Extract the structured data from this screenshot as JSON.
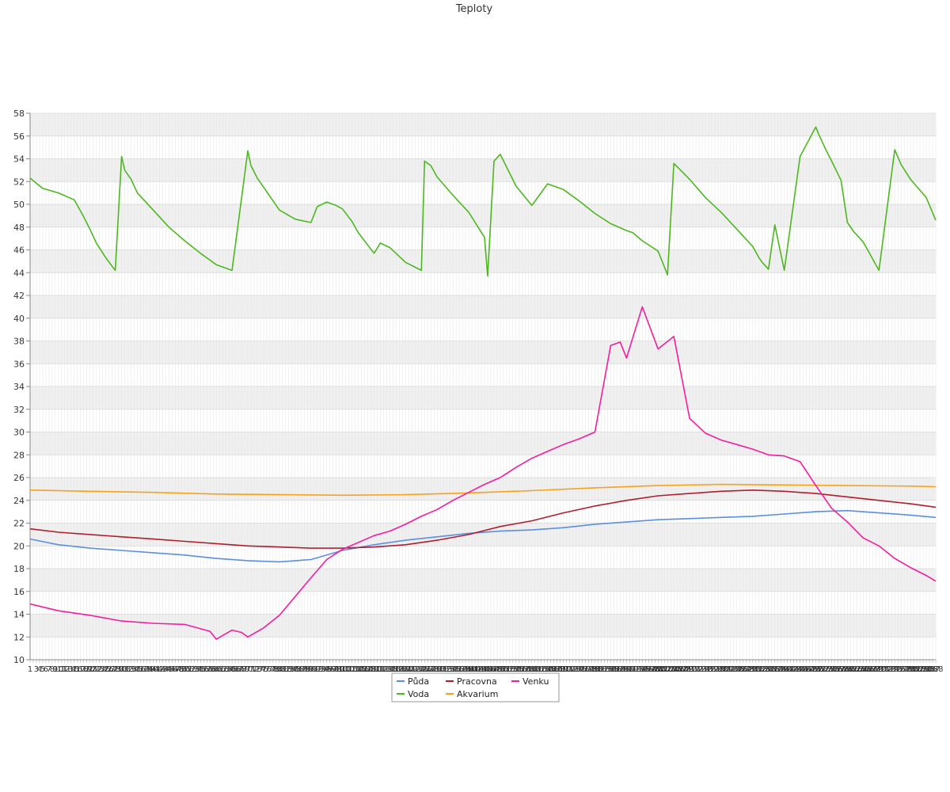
{
  "chart_data": {
    "type": "line",
    "title": "Teploty",
    "xlabel": "",
    "ylabel": "",
    "ylim": [
      10,
      58
    ],
    "yticks": [
      10,
      12,
      14,
      16,
      18,
      20,
      22,
      24,
      26,
      28,
      30,
      32,
      34,
      36,
      38,
      40,
      42,
      44,
      46,
      48,
      50,
      52,
      54,
      56,
      58
    ],
    "grid": true,
    "legend_position": "bottom-center",
    "x": [
      1,
      288
    ],
    "x_visible_labels": [
      "1",
      "3",
      "5",
      "6",
      "7",
      "8",
      "9",
      "10",
      "11",
      "13",
      "15",
      "16",
      "20",
      "22",
      "23",
      "24",
      "25",
      "27",
      "29",
      "30",
      "31",
      "33",
      "35"
    ],
    "x_label_overflow": true,
    "series": [
      {
        "name": "Půda",
        "color": "#5b8fe0",
        "x": [
          1,
          10,
          20,
          30,
          40,
          50,
          60,
          70,
          80,
          90,
          100,
          110,
          120,
          130,
          140,
          150,
          160,
          170,
          180,
          190,
          200,
          210,
          220,
          230,
          240,
          250,
          260,
          270,
          280,
          288
        ],
        "values": [
          20.6,
          20.1,
          19.8,
          19.6,
          19.4,
          19.2,
          18.9,
          18.7,
          18.6,
          18.8,
          19.6,
          20.1,
          20.5,
          20.8,
          21.1,
          21.3,
          21.4,
          21.6,
          21.9,
          22.1,
          22.3,
          22.4,
          22.5,
          22.6,
          22.8,
          23.0,
          23.1,
          22.9,
          22.7,
          22.5
        ]
      },
      {
        "name": "Pracovna",
        "color": "#b01e2e",
        "x": [
          1,
          10,
          20,
          30,
          40,
          50,
          60,
          70,
          80,
          90,
          100,
          110,
          120,
          130,
          140,
          150,
          160,
          170,
          180,
          190,
          200,
          210,
          220,
          230,
          240,
          250,
          260,
          270,
          280,
          288
        ],
        "values": [
          21.5,
          21.2,
          21.0,
          20.8,
          20.6,
          20.4,
          20.2,
          20.0,
          19.9,
          19.8,
          19.8,
          19.9,
          20.1,
          20.5,
          21.0,
          21.7,
          22.2,
          22.9,
          23.5,
          24.0,
          24.4,
          24.6,
          24.8,
          24.9,
          24.8,
          24.6,
          24.3,
          24.0,
          23.7,
          23.4
        ]
      },
      {
        "name": "Venku",
        "color": "#f21e9e",
        "x": [
          1,
          10,
          20,
          30,
          40,
          50,
          58,
          60,
          65,
          68,
          70,
          75,
          80,
          90,
          95,
          100,
          110,
          115,
          120,
          125,
          130,
          135,
          140,
          145,
          150,
          155,
          160,
          165,
          170,
          175,
          180,
          185,
          188,
          190,
          195,
          200,
          205,
          210,
          215,
          220,
          225,
          230,
          235,
          240,
          245,
          250,
          255,
          260,
          265,
          270,
          275,
          280,
          285,
          288
        ],
        "values": [
          14.9,
          14.3,
          13.9,
          13.4,
          13.2,
          13.1,
          12.5,
          11.8,
          12.6,
          12.4,
          12.0,
          12.8,
          13.9,
          17.2,
          18.8,
          19.7,
          20.9,
          21.3,
          21.9,
          22.6,
          23.2,
          24.0,
          24.7,
          25.4,
          26.0,
          26.9,
          27.7,
          28.3,
          28.9,
          29.4,
          30.0,
          37.6,
          37.9,
          36.5,
          41.0,
          37.3,
          38.4,
          31.2,
          29.9,
          29.3,
          28.9,
          28.5,
          28.0,
          27.9,
          27.4,
          25.3,
          23.3,
          22.1,
          20.7,
          20.0,
          18.9,
          18.1,
          17.4,
          16.9
        ]
      },
      {
        "name": "Voda",
        "color": "#4cb81e",
        "x": [
          1,
          5,
          10,
          15,
          18,
          20,
          22,
          25,
          28,
          30,
          31,
          33,
          35,
          40,
          45,
          50,
          55,
          60,
          65,
          70,
          71,
          73,
          75,
          80,
          85,
          90,
          92,
          95,
          98,
          100,
          103,
          105,
          110,
          112,
          115,
          120,
          125,
          126,
          128,
          130,
          135,
          140,
          145,
          146,
          148,
          150,
          155,
          160,
          165,
          170,
          175,
          180,
          185,
          190,
          192,
          195,
          200,
          203,
          205,
          210,
          215,
          220,
          225,
          230,
          232,
          233,
          235,
          237,
          240,
          245,
          250,
          251,
          253,
          255,
          258,
          260,
          262,
          265,
          270,
          275,
          277,
          280,
          285,
          288
        ],
        "values": [
          52.3,
          51.4,
          51.0,
          50.4,
          48.9,
          47.8,
          46.6,
          45.3,
          44.2,
          54.2,
          53.0,
          52.2,
          51.0,
          49.5,
          48.0,
          46.8,
          45.7,
          44.7,
          44.2,
          54.7,
          53.4,
          52.3,
          51.5,
          49.5,
          48.7,
          48.4,
          49.8,
          50.2,
          49.9,
          49.6,
          48.5,
          47.5,
          45.7,
          46.6,
          46.2,
          44.9,
          44.2,
          53.8,
          53.4,
          52.4,
          50.8,
          49.3,
          47.1,
          43.7,
          53.8,
          54.4,
          51.6,
          49.9,
          51.8,
          51.3,
          50.3,
          49.2,
          48.3,
          47.7,
          47.5,
          46.8,
          45.9,
          43.8,
          53.6,
          52.2,
          50.6,
          49.3,
          47.8,
          46.3,
          45.3,
          44.9,
          44.3,
          48.2,
          44.2,
          54.2,
          56.8,
          56.1,
          54.9,
          53.8,
          52.1,
          48.4,
          47.6,
          46.7,
          44.2,
          54.8,
          53.5,
          52.2,
          50.6,
          48.6
        ]
      },
      {
        "name": "Akvarium",
        "color": "#f7a21b",
        "x": [
          1,
          20,
          40,
          60,
          80,
          100,
          120,
          140,
          160,
          180,
          200,
          220,
          240,
          260,
          280,
          288
        ],
        "values": [
          24.9,
          24.8,
          24.7,
          24.55,
          24.5,
          24.45,
          24.5,
          24.65,
          24.85,
          25.1,
          25.3,
          25.4,
          25.35,
          25.3,
          25.25,
          25.2
        ]
      }
    ]
  }
}
